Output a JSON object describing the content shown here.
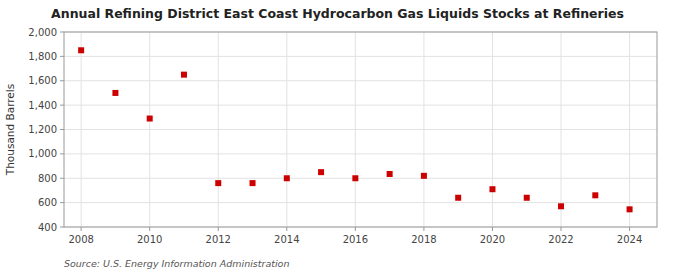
{
  "chart_data": {
    "type": "scatter",
    "title": "Annual Refining District East Coast Hydrocarbon Gas Liquids Stocks at Refineries",
    "y_label": "Thousand Barrels",
    "source": "Source: U.S. Energy Information Administration",
    "x": [
      2008,
      2009,
      2010,
      2011,
      2012,
      2013,
      2014,
      2015,
      2016,
      2017,
      2018,
      2019,
      2020,
      2021,
      2022,
      2023,
      2024
    ],
    "values": [
      1850,
      1500,
      1290,
      1650,
      760,
      760,
      800,
      850,
      800,
      835,
      820,
      640,
      710,
      640,
      570,
      660,
      545
    ],
    "color": "#cc0000",
    "marker": "square",
    "xlim": [
      2007.5,
      2024.8
    ],
    "xticks": [
      2008,
      2010,
      2012,
      2014,
      2016,
      2018,
      2020,
      2022,
      2024
    ],
    "ylim": [
      400,
      2000
    ],
    "yticks": [
      400,
      600,
      800,
      {
        "value": 1000,
        "label": "1,000"
      },
      {
        "value": 1200,
        "label": "1,200"
      },
      {
        "value": 1400,
        "label": "1,400"
      },
      {
        "value": 1600,
        "label": "1,600"
      },
      {
        "value": 1800,
        "label": "1,800"
      },
      {
        "value": 2000,
        "label": "2,000"
      }
    ],
    "grid": true
  }
}
